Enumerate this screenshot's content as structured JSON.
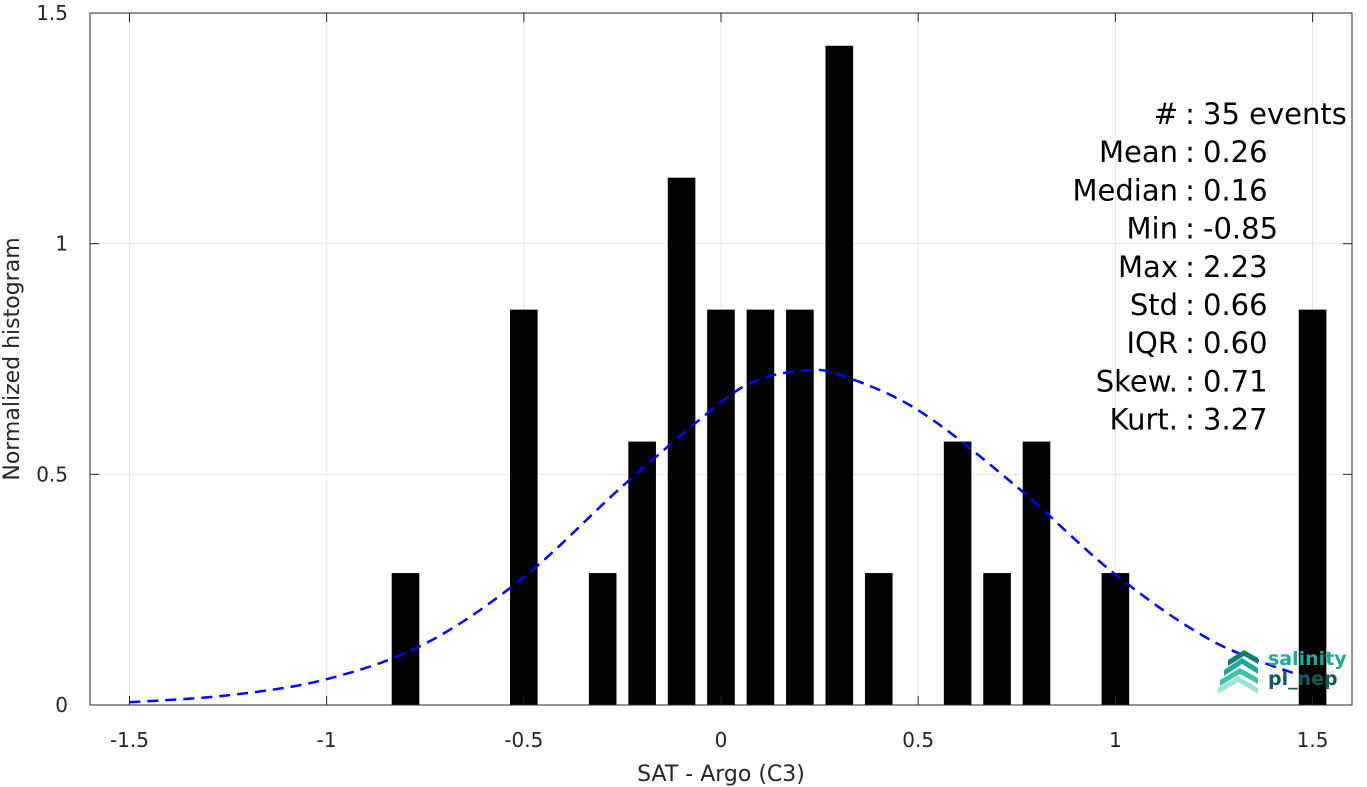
{
  "colors": {
    "bar": "#000000",
    "fit_curve": "#0000ff",
    "grid": "#e6e6e6",
    "axis": "#262626",
    "logo_teal": "#1aa99a",
    "logo_dark": "#0e5e5a"
  },
  "stats": [
    {
      "label": "#",
      "sep": ":",
      "value": "35 events"
    },
    {
      "label": "Mean",
      "sep": ":",
      "value": "0.26"
    },
    {
      "label": "Median",
      "sep": ":",
      "value": "0.16"
    },
    {
      "label": "Min",
      "sep": ":",
      "value": "-0.85"
    },
    {
      "label": "Max",
      "sep": ":",
      "value": "2.23"
    },
    {
      "label": "Std",
      "sep": ":",
      "value": "0.66"
    },
    {
      "label": "IQR",
      "sep": ":",
      "value": "0.60"
    },
    {
      "label": "Skew.",
      "sep": ":",
      "value": "0.71"
    },
    {
      "label": "Kurt.",
      "sep": ":",
      "value": "3.27"
    }
  ],
  "logo": {
    "line1": "salinity",
    "line2": "pl_nep",
    "icon": "salinity-pipeline-logo-icon"
  },
  "chart_data": {
    "type": "bar",
    "xlabel": "SAT - Argo (C3)",
    "ylabel": "Normalized histogram",
    "xlim": [
      -1.6,
      1.6
    ],
    "ylim": [
      0,
      1.5
    ],
    "xticks": [
      -1.5,
      -1,
      -0.5,
      0,
      0.5,
      1,
      1.5
    ],
    "xtick_labels": [
      "-1.5",
      "-1",
      "-0.5",
      "0",
      "0.5",
      "1",
      "1.5"
    ],
    "yticks": [
      0,
      0.5,
      1,
      1.5
    ],
    "ytick_labels": [
      "0",
      "0.5",
      "1",
      "1.5"
    ],
    "bar_width": 0.07,
    "grid": true,
    "series": [
      {
        "type": "bar",
        "x": [
          -0.8,
          -0.5,
          -0.3,
          -0.2,
          -0.1,
          0.0,
          0.1,
          0.2,
          0.3,
          0.4,
          0.6,
          0.7,
          0.8,
          1.0,
          1.5
        ],
        "values": [
          0.286,
          0.857,
          0.286,
          0.571,
          1.143,
          0.857,
          0.857,
          0.857,
          1.429,
          0.286,
          0.571,
          0.286,
          0.571,
          0.286,
          0.857
        ]
      },
      {
        "type": "line",
        "style": "dashed",
        "x": [
          -1.5,
          -1.25,
          -1.0,
          -0.75,
          -0.5,
          -0.25,
          0.0,
          0.1,
          0.21,
          0.3,
          0.5,
          0.75,
          1.0,
          1.25,
          1.5
        ],
        "y": [
          0.006,
          0.021,
          0.056,
          0.133,
          0.277,
          0.474,
          0.656,
          0.706,
          0.725,
          0.716,
          0.639,
          0.473,
          0.283,
          0.137,
          0.055
        ]
      }
    ]
  }
}
